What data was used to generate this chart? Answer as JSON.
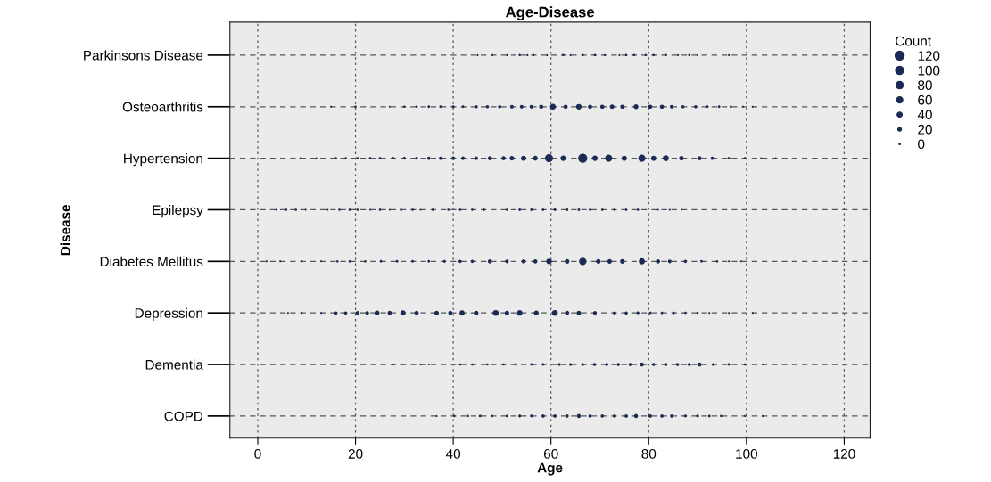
{
  "chart_data": {
    "type": "bubble",
    "orientation": "horizontal",
    "title": "Age-Disease",
    "xlabel": "Age",
    "ylabel": "Disease",
    "legend_title": "Count",
    "grid": true,
    "categories": [
      "Parkinsons Disease",
      "Osteoarthritis",
      "Hypertension",
      "Epilepsy",
      "Diabetes Mellitus",
      "Depression",
      "Dementia",
      "COPD"
    ],
    "xlim": [
      -5.7,
      125.3
    ],
    "xticks": [
      0,
      20,
      40,
      60,
      80,
      100,
      120
    ],
    "size_legend": [
      120,
      100,
      80,
      60,
      40,
      20,
      0
    ],
    "series": [
      {
        "color": "#1c2b55",
        "values": [
          45,
          48,
          51,
          53.6,
          55.2,
          56.4,
          59.2,
          62.5,
          64,
          66.5,
          69,
          71,
          74,
          75.4,
          77,
          79.4,
          81,
          83.5,
          86,
          88.3,
          90,
          96.4
        ],
        "sizes": [
          5,
          5,
          5,
          8,
          5,
          8,
          5,
          8,
          5,
          8,
          8,
          5,
          5,
          8,
          8,
          8,
          8,
          8,
          5,
          8,
          5,
          5
        ],
        "x": [
          "Parkinsons Disease",
          "Parkinsons Disease",
          "Parkinsons Disease",
          "Parkinsons Disease",
          "Parkinsons Disease",
          "Parkinsons Disease",
          "Parkinsons Disease",
          "Parkinsons Disease",
          "Parkinsons Disease",
          "Parkinsons Disease",
          "Parkinsons Disease",
          "Parkinsons Disease",
          "Parkinsons Disease",
          "Parkinsons Disease",
          "Parkinsons Disease",
          "Parkinsons Disease",
          "Parkinsons Disease",
          "Parkinsons Disease",
          "Parkinsons Disease",
          "Parkinsons Disease",
          "Parkinsons Disease",
          "Parkinsons Disease"
        ]
      },
      {
        "color": "#1c2b55",
        "values": [
          15,
          20,
          27,
          30,
          32.5,
          35,
          37.4,
          40,
          42,
          44.7,
          47,
          49.5,
          52,
          54,
          56,
          58,
          60.4,
          63,
          65.7,
          68,
          70.5,
          72.5,
          74.6,
          77.4,
          80.3,
          82.7,
          84.7,
          87,
          89.6,
          92,
          94.4,
          96.8,
          99.3,
          101.3
        ],
        "sizes": [
          5,
          8,
          5,
          8,
          8,
          10,
          10,
          10,
          10,
          15,
          15,
          15,
          20,
          20,
          20,
          25,
          50,
          25,
          45,
          25,
          25,
          30,
          25,
          35,
          25,
          25,
          20,
          15,
          15,
          10,
          10,
          8,
          5,
          5
        ],
        "x": [
          "Osteoarthritis",
          "Osteoarthritis",
          "Osteoarthritis",
          "Osteoarthritis",
          "Osteoarthritis",
          "Osteoarthritis",
          "Osteoarthritis",
          "Osteoarthritis",
          "Osteoarthritis",
          "Osteoarthritis",
          "Osteoarthritis",
          "Osteoarthritis",
          "Osteoarthritis",
          "Osteoarthritis",
          "Osteoarthritis",
          "Osteoarthritis",
          "Osteoarthritis",
          "Osteoarthritis",
          "Osteoarthritis",
          "Osteoarthritis",
          "Osteoarthritis",
          "Osteoarthritis",
          "Osteoarthritis",
          "Osteoarthritis",
          "Osteoarthritis",
          "Osteoarthritis",
          "Osteoarthritis",
          "Osteoarthritis",
          "Osteoarthritis",
          "Osteoarthritis",
          "Osteoarthritis",
          "Osteoarthritis",
          "Osteoarthritis",
          "Osteoarthritis"
        ]
      },
      {
        "color": "#1c2b55",
        "values": [
          8.7,
          12,
          16,
          18,
          20.4,
          23,
          25,
          27.7,
          30,
          32.5,
          35,
          37.4,
          40,
          42,
          44.7,
          47.5,
          50.3,
          52,
          54.4,
          56.8,
          59.6,
          62.5,
          66.5,
          69,
          71.8,
          75,
          78.6,
          81,
          83.5,
          86.7,
          90.4,
          93,
          96.4,
          99.7,
          103,
          106
        ],
        "sizes": [
          5,
          5,
          8,
          8,
          10,
          10,
          10,
          10,
          12,
          12,
          15,
          15,
          20,
          20,
          20,
          25,
          25,
          30,
          40,
          35,
          95,
          45,
          120,
          45,
          75,
          40,
          75,
          40,
          50,
          30,
          25,
          15,
          10,
          8,
          5,
          5
        ],
        "x": [
          "Hypertension",
          "Hypertension",
          "Hypertension",
          "Hypertension",
          "Hypertension",
          "Hypertension",
          "Hypertension",
          "Hypertension",
          "Hypertension",
          "Hypertension",
          "Hypertension",
          "Hypertension",
          "Hypertension",
          "Hypertension",
          "Hypertension",
          "Hypertension",
          "Hypertension",
          "Hypertension",
          "Hypertension",
          "Hypertension",
          "Hypertension",
          "Hypertension",
          "Hypertension",
          "Hypertension",
          "Hypertension",
          "Hypertension",
          "Hypertension",
          "Hypertension",
          "Hypertension",
          "Hypertension",
          "Hypertension",
          "Hypertension",
          "Hypertension",
          "Hypertension",
          "Hypertension",
          "Hypertension"
        ]
      },
      {
        "color": "#1c2b55",
        "values": [
          3.8,
          5.8,
          7.8,
          9.8,
          14.3,
          16.7,
          18.8,
          20.4,
          23,
          25,
          27,
          29.3,
          31.7,
          33.3,
          35.8,
          39,
          41.4,
          43.9,
          46.3,
          51,
          53.6,
          56,
          58.4,
          60.8,
          63.3,
          65.7,
          68,
          70.5,
          73,
          75.4,
          77.8,
          81.9,
          84.3,
          86.7
        ],
        "sizes": [
          5,
          8,
          8,
          5,
          5,
          8,
          8,
          8,
          5,
          8,
          5,
          8,
          8,
          5,
          8,
          8,
          8,
          8,
          8,
          8,
          10,
          10,
          8,
          10,
          10,
          10,
          10,
          8,
          8,
          8,
          8,
          5,
          5,
          5
        ],
        "x": [
          "Epilepsy",
          "Epilepsy",
          "Epilepsy",
          "Epilepsy",
          "Epilepsy",
          "Epilepsy",
          "Epilepsy",
          "Epilepsy",
          "Epilepsy",
          "Epilepsy",
          "Epilepsy",
          "Epilepsy",
          "Epilepsy",
          "Epilepsy",
          "Epilepsy",
          "Epilepsy",
          "Epilepsy",
          "Epilepsy",
          "Epilepsy",
          "Epilepsy",
          "Epilepsy",
          "Epilepsy",
          "Epilepsy",
          "Epilepsy",
          "Epilepsy",
          "Epilepsy",
          "Epilepsy",
          "Epilepsy",
          "Epilepsy",
          "Epilepsy",
          "Epilepsy",
          "Epilepsy",
          "Epilepsy",
          "Epilepsy"
        ]
      },
      {
        "color": "#1c2b55",
        "values": [
          1.8,
          4.6,
          9,
          13,
          16.3,
          18.8,
          22,
          25.2,
          28.5,
          31.7,
          35,
          38.2,
          41.4,
          43.9,
          47.5,
          51,
          54.4,
          56.8,
          59.6,
          63.3,
          66.5,
          69.7,
          72,
          74.6,
          78.6,
          81.9,
          84.3,
          87.5,
          90.8,
          94,
          96.4,
          98.9
        ],
        "sizes": [
          5,
          5,
          5,
          5,
          8,
          8,
          8,
          10,
          10,
          10,
          10,
          12,
          15,
          15,
          25,
          20,
          25,
          25,
          45,
          30,
          80,
          30,
          30,
          30,
          55,
          25,
          20,
          15,
          10,
          8,
          5,
          5
        ],
        "x": [
          "Diabetes Mellitus",
          "Diabetes Mellitus",
          "Diabetes Mellitus",
          "Diabetes Mellitus",
          "Diabetes Mellitus",
          "Diabetes Mellitus",
          "Diabetes Mellitus",
          "Diabetes Mellitus",
          "Diabetes Mellitus",
          "Diabetes Mellitus",
          "Diabetes Mellitus",
          "Diabetes Mellitus",
          "Diabetes Mellitus",
          "Diabetes Mellitus",
          "Diabetes Mellitus",
          "Diabetes Mellitus",
          "Diabetes Mellitus",
          "Diabetes Mellitus",
          "Diabetes Mellitus",
          "Diabetes Mellitus",
          "Diabetes Mellitus",
          "Diabetes Mellitus",
          "Diabetes Mellitus",
          "Diabetes Mellitus",
          "Diabetes Mellitus",
          "Diabetes Mellitus",
          "Diabetes Mellitus",
          "Diabetes Mellitus",
          "Diabetes Mellitus",
          "Diabetes Mellitus",
          "Diabetes Mellitus",
          "Diabetes Mellitus"
        ]
      },
      {
        "color": "#1c2b55",
        "values": [
          6.2,
          9,
          13,
          16,
          18,
          20.4,
          22.4,
          24.4,
          27,
          29.7,
          32.5,
          36.6,
          39.4,
          41.8,
          44.7,
          48.7,
          51,
          53.6,
          57,
          60.8,
          63.3,
          65.7,
          69,
          73,
          75.4,
          77.8,
          80.3,
          82.7,
          85.1,
          87.5,
          90,
          92.4,
          96.4,
          101.3
        ],
        "sizes": [
          5,
          5,
          5,
          15,
          15,
          20,
          20,
          35,
          25,
          40,
          25,
          30,
          25,
          40,
          30,
          50,
          30,
          45,
          35,
          50,
          25,
          30,
          20,
          15,
          15,
          12,
          10,
          10,
          10,
          8,
          8,
          5,
          5,
          5
        ],
        "x": [
          "Depression",
          "Depression",
          "Depression",
          "Depression",
          "Depression",
          "Depression",
          "Depression",
          "Depression",
          "Depression",
          "Depression",
          "Depression",
          "Depression",
          "Depression",
          "Depression",
          "Depression",
          "Depression",
          "Depression",
          "Depression",
          "Depression",
          "Depression",
          "Depression",
          "Depression",
          "Depression",
          "Depression",
          "Depression",
          "Depression",
          "Depression",
          "Depression",
          "Depression",
          "Depression",
          "Depression",
          "Depression",
          "Depression",
          "Depression"
        ]
      },
      {
        "color": "#1c2b55",
        "values": [
          27.7,
          29.3,
          33.3,
          35,
          41.4,
          43.9,
          47,
          50.3,
          52.8,
          56,
          58.4,
          61.7,
          64,
          66.5,
          68.9,
          71.4,
          73.8,
          76.2,
          78.6,
          81,
          83.5,
          85.9,
          88.3,
          90.4,
          93.2,
          96.4,
          99.7,
          103.3
        ],
        "sizes": [
          5,
          5,
          5,
          5,
          8,
          8,
          8,
          8,
          10,
          10,
          10,
          12,
          12,
          12,
          15,
          15,
          15,
          15,
          25,
          15,
          15,
          15,
          15,
          25,
          12,
          10,
          8,
          5
        ],
        "x": [
          "Dementia",
          "Dementia",
          "Dementia",
          "Dementia",
          "Dementia",
          "Dementia",
          "Dementia",
          "Dementia",
          "Dementia",
          "Dementia",
          "Dementia",
          "Dementia",
          "Dementia",
          "Dementia",
          "Dementia",
          "Dementia",
          "Dementia",
          "Dementia",
          "Dementia",
          "Dementia",
          "Dementia",
          "Dementia",
          "Dementia",
          "Dementia",
          "Dementia",
          "Dementia",
          "Dementia",
          "Dementia"
        ]
      },
      {
        "color": "#1c2b55",
        "values": [
          36.6,
          40.2,
          43,
          45.5,
          47.9,
          51,
          53.6,
          56,
          58.4,
          60.8,
          63.3,
          65.7,
          68,
          70.5,
          73,
          75.4,
          77.4,
          80.3,
          82.7,
          84.7,
          87.5,
          90,
          92.4,
          94.8,
          99.7,
          103.3
        ],
        "sizes": [
          5,
          8,
          8,
          10,
          10,
          10,
          12,
          12,
          15,
          15,
          15,
          25,
          15,
          15,
          15,
          18,
          25,
          18,
          15,
          15,
          12,
          12,
          10,
          8,
          5,
          5
        ],
        "x": [
          "COPD",
          "COPD",
          "COPD",
          "COPD",
          "COPD",
          "COPD",
          "COPD",
          "COPD",
          "COPD",
          "COPD",
          "COPD",
          "COPD",
          "COPD",
          "COPD",
          "COPD",
          "COPD",
          "COPD",
          "COPD",
          "COPD",
          "COPD",
          "COPD",
          "COPD",
          "COPD",
          "COPD",
          "COPD",
          "COPD"
        ]
      }
    ]
  }
}
